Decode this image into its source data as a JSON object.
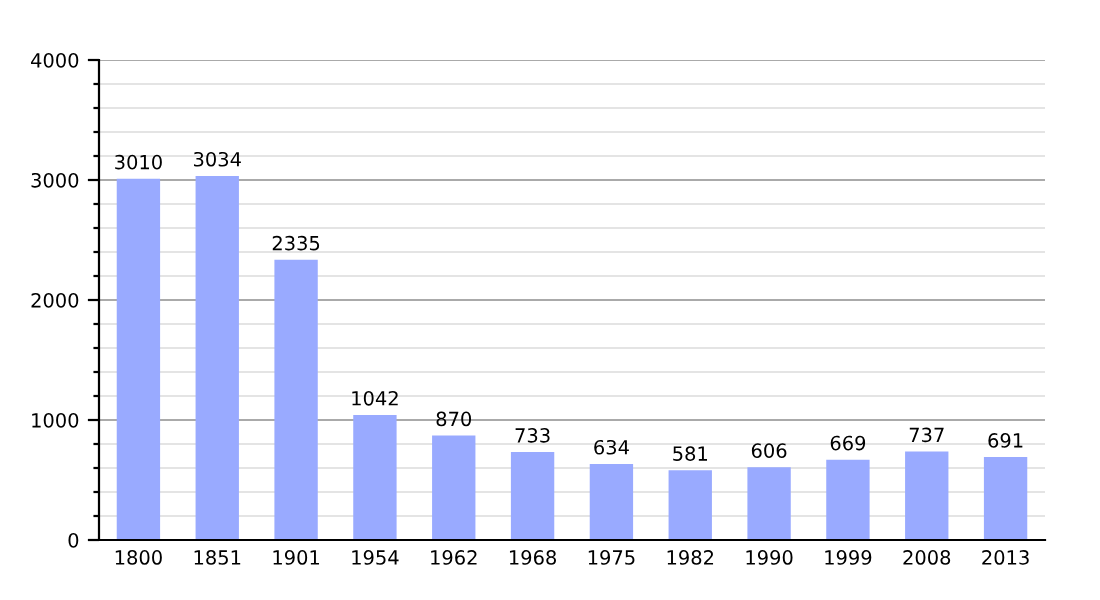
{
  "chart_data": {
    "type": "bar",
    "categories": [
      "1800",
      "1851",
      "1901",
      "1954",
      "1962",
      "1968",
      "1975",
      "1982",
      "1990",
      "1999",
      "2008",
      "2013"
    ],
    "values": [
      3010,
      3034,
      2335,
      1042,
      870,
      733,
      634,
      581,
      606,
      669,
      737,
      691
    ],
    "color": "#99aaff",
    "data_labels": true,
    "ylim": [
      0,
      4000
    ],
    "yticks": [
      0,
      {
        "value": 200,
        "label": null
      },
      {
        "value": 400,
        "label": null
      },
      {
        "value": 600,
        "label": null
      },
      {
        "value": 800,
        "label": null
      },
      1000,
      {
        "value": 1200,
        "label": null
      },
      {
        "value": 1400,
        "label": null
      },
      {
        "value": 1600,
        "label": null
      },
      {
        "value": 1800,
        "label": null
      },
      2000,
      {
        "value": 2200,
        "label": null
      },
      {
        "value": 2400,
        "label": null
      },
      {
        "value": 2600,
        "label": null
      },
      {
        "value": 2800,
        "label": null
      },
      3000,
      {
        "value": 3200,
        "label": null
      },
      {
        "value": 3400,
        "label": null
      },
      {
        "value": 3600,
        "label": null
      },
      {
        "value": 3800,
        "label": null
      },
      4000
    ],
    "grid": "y"
  }
}
